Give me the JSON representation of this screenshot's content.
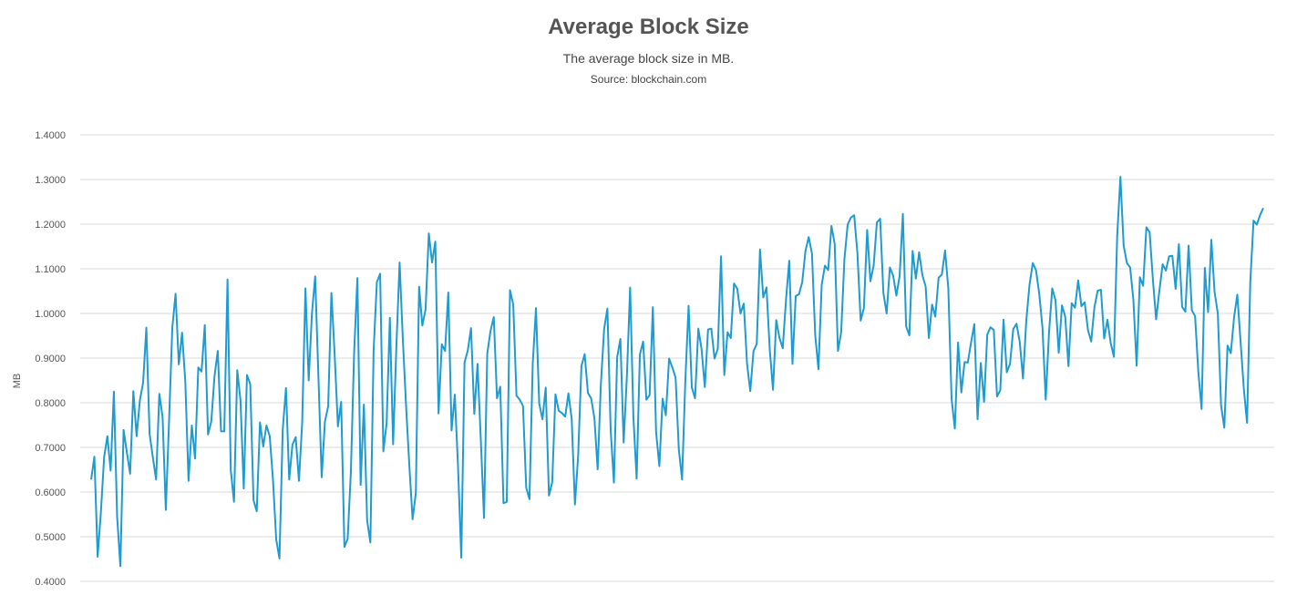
{
  "chart_data": {
    "type": "line",
    "title": "Average Block Size",
    "subtitle": "The average block size in MB.",
    "source": "Source: blockchain.com",
    "ylabel": "MB",
    "ylim": [
      0.4,
      1.4
    ],
    "y_ticks": [
      "0.4000",
      "0.5000",
      "0.6000",
      "0.7000",
      "0.8000",
      "0.9000",
      "1.0000",
      "1.1000",
      "1.2000",
      "1.3000",
      "1.4000"
    ],
    "grid": true,
    "line_color": "#1f9bcf",
    "series": [
      {
        "values": [
          0.628,
          0.679,
          0.455,
          0.555,
          0.678,
          0.725,
          0.648,
          0.825,
          0.545,
          0.434,
          0.739,
          0.689,
          0.641,
          0.826,
          0.725,
          0.805,
          0.845,
          0.968,
          0.73,
          0.678,
          0.628,
          0.82,
          0.768,
          0.56,
          0.76,
          0.968,
          1.044,
          0.886,
          0.957,
          0.847,
          0.625,
          0.749,
          0.675,
          0.879,
          0.87,
          0.974,
          0.729,
          0.758,
          0.86,
          0.916,
          0.736,
          0.736,
          1.076,
          0.649,
          0.578,
          0.873,
          0.805,
          0.608,
          0.862,
          0.842,
          0.582,
          0.557,
          0.756,
          0.702,
          0.749,
          0.725,
          0.628,
          0.494,
          0.451,
          0.739,
          0.833,
          0.628,
          0.706,
          0.723,
          0.625,
          0.756,
          1.056,
          0.85,
          1.0,
          1.083,
          0.857,
          0.633,
          0.758,
          0.792,
          1.046,
          0.908,
          0.747,
          0.802,
          0.477,
          0.495,
          0.647,
          0.914,
          1.079,
          0.616,
          0.796,
          0.536,
          0.487,
          0.918,
          1.07,
          1.089,
          0.691,
          0.754,
          0.99,
          0.707,
          0.925,
          1.114,
          0.942,
          0.792,
          0.659,
          0.539,
          0.598,
          1.06,
          0.973,
          1.009,
          1.179,
          1.114,
          1.161,
          0.776,
          0.931,
          0.916,
          1.047,
          0.738,
          0.818,
          0.656,
          0.453,
          0.89,
          0.917,
          0.967,
          0.775,
          0.887,
          0.719,
          0.542,
          0.91,
          0.961,
          0.992,
          0.81,
          0.836,
          0.575,
          0.578,
          1.052,
          1.02,
          0.816,
          0.807,
          0.793,
          0.61,
          0.584,
          0.887,
          1.012,
          0.798,
          0.763,
          0.834,
          0.592,
          0.622,
          0.819,
          0.782,
          0.777,
          0.769,
          0.821,
          0.764,
          0.572,
          0.683,
          0.882,
          0.909,
          0.822,
          0.81,
          0.765,
          0.651,
          0.843,
          0.966,
          1.011,
          0.74,
          0.621,
          0.902,
          0.943,
          0.711,
          0.859,
          1.058,
          0.769,
          0.63,
          0.908,
          0.937,
          0.807,
          0.817,
          1.014,
          0.734,
          0.658,
          0.809,
          0.772,
          0.899,
          0.879,
          0.856,
          0.695,
          0.628,
          0.85,
          1.017,
          0.834,
          0.81,
          0.966,
          0.92,
          0.835,
          0.964,
          0.966,
          0.899,
          0.921,
          1.128,
          0.862,
          0.958,
          0.945,
          1.067,
          1.055,
          1.0,
          1.022,
          0.888,
          0.826,
          0.916,
          0.932,
          1.143,
          1.036,
          1.058,
          0.919,
          0.829,
          0.985,
          0.945,
          0.922,
          1.03,
          1.118,
          0.887,
          1.039,
          1.043,
          1.07,
          1.14,
          1.171,
          1.134,
          0.952,
          0.875,
          1.064,
          1.107,
          1.097,
          1.196,
          1.156,
          0.916,
          0.958,
          1.122,
          1.199,
          1.215,
          1.22,
          1.135,
          0.984,
          1.012,
          1.187,
          1.072,
          1.107,
          1.204,
          1.212,
          1.046,
          1.0,
          1.103,
          1.085,
          1.04,
          1.084,
          1.223,
          0.971,
          0.951,
          1.14,
          1.078,
          1.137,
          1.086,
          1.061,
          0.945,
          1.02,
          0.993,
          1.08,
          1.087,
          1.141,
          1.056,
          0.809,
          0.742,
          0.935,
          0.823,
          0.891,
          0.89,
          0.935,
          0.976,
          0.763,
          0.889,
          0.802,
          0.953,
          0.969,
          0.963,
          0.814,
          0.828,
          0.986,
          0.868,
          0.887,
          0.965,
          0.977,
          0.936,
          0.854,
          0.983,
          1.064,
          1.113,
          1.097,
          1.044,
          0.968,
          0.807,
          0.956,
          1.056,
          1.03,
          0.912,
          1.018,
          0.993,
          0.882,
          1.023,
          1.013,
          1.074,
          1.016,
          1.025,
          0.963,
          0.937,
          1.014,
          1.051,
          1.053,
          0.944,
          0.986,
          0.934,
          0.903,
          1.173,
          1.306,
          1.152,
          1.113,
          1.103,
          1.03,
          0.883,
          1.081,
          1.062,
          1.193,
          1.182,
          1.076,
          0.987,
          1.051,
          1.11,
          1.096,
          1.128,
          1.129,
          1.055,
          1.155,
          1.015,
          1.004,
          1.152,
          1.007,
          0.994,
          0.869,
          0.786,
          1.102,
          1.003,
          1.165,
          1.048,
          1.0,
          0.794,
          0.744,
          0.928,
          0.911,
          0.991,
          1.042,
          0.938,
          0.832,
          0.755,
          1.07,
          1.208,
          1.199,
          1.22,
          1.236
        ]
      }
    ]
  }
}
